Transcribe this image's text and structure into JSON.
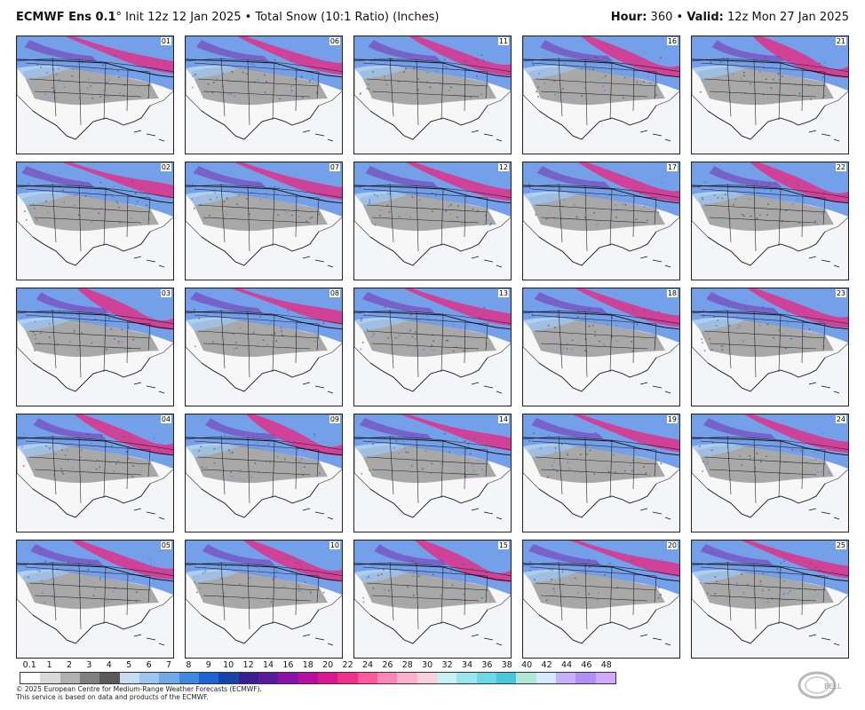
{
  "header": {
    "model": "ECMWF Ens 0.1",
    "degree": "°",
    "description": "Init 12z 12 Jan 2025 • Total Snow (10:1 Ratio) (Inches)",
    "hour_label": "Hour:",
    "hour_value": "360",
    "separator": "•",
    "valid_label": "Valid:",
    "valid_value": "12z Mon 27 Jan 2025"
  },
  "members": [
    "01",
    "02",
    "03",
    "04",
    "05",
    "06",
    "07",
    "08",
    "09",
    "10",
    "11",
    "12",
    "13",
    "14",
    "15",
    "16",
    "17",
    "18",
    "19",
    "20",
    "21",
    "22",
    "23",
    "24",
    "25"
  ],
  "colorbar": {
    "labels": [
      "0.1",
      "1",
      "2",
      "3",
      "4",
      "5",
      "6",
      "7",
      "8",
      "9",
      "10",
      "12",
      "14",
      "16",
      "18",
      "20",
      "22",
      "24",
      "26",
      "28",
      "30",
      "32",
      "34",
      "36",
      "38",
      "40",
      "42",
      "44",
      "46",
      "48"
    ],
    "colors": [
      "#ffffff",
      "#d9d9d9",
      "#b0b0b0",
      "#808080",
      "#5a5a5a",
      "#c6dbf2",
      "#9dc4ee",
      "#6fa9e8",
      "#3f8ae0",
      "#1c66cf",
      "#1746a8",
      "#3a1f8c",
      "#5b1a9a",
      "#8a12a8",
      "#b40fa0",
      "#d81890",
      "#f0308a",
      "#ff5aa0",
      "#ff86b8",
      "#ffb0cc",
      "#f7d2de",
      "#c8f0f4",
      "#9ae6ee",
      "#6dd8e6",
      "#48c6dc",
      "#b0e8d8",
      "#d6e9ff",
      "#c8b0ff",
      "#b090f4",
      "#d4a8ff"
    ]
  },
  "footer": {
    "line1": "© 2025 European Centre for Medium-Range Weather Forecasts (ECMWF).",
    "line2": "This service is based on data and products of the ECMWF."
  },
  "logo_text": "BELL"
}
